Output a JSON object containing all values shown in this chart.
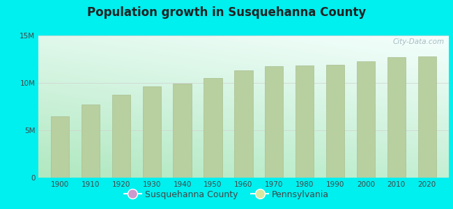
{
  "title": "Population growth in Susquehanna County",
  "years": [
    1900,
    1910,
    1920,
    1930,
    1940,
    1950,
    1960,
    1970,
    1980,
    1990,
    2000,
    2010,
    2020
  ],
  "pennsylvania_values": [
    6500000,
    7700000,
    8720000,
    9630000,
    9900000,
    10500000,
    11320000,
    11800000,
    11870000,
    11880000,
    12280000,
    12700000,
    12800000
  ],
  "bar_color": "#b8cfa0",
  "bar_edge_color": "#a8bf90",
  "background_color": "#00EFEF",
  "plot_bg_color_bottom_left": "#b0e8c0",
  "plot_bg_color_top_right": "#f0fff8",
  "ylim": [
    0,
    15000000
  ],
  "yticks": [
    0,
    5000000,
    10000000,
    15000000
  ],
  "ytick_labels": [
    "0",
    "5M",
    "10M",
    "15M"
  ],
  "grid_color": "#d0d0d0",
  "title_color": "#222222",
  "tick_color": "#444444",
  "legend_county_color": "#cc99cc",
  "legend_pa_color": "#d8e8a0",
  "watermark_text": "City-Data.com",
  "watermark_color": "#9ab0b8"
}
